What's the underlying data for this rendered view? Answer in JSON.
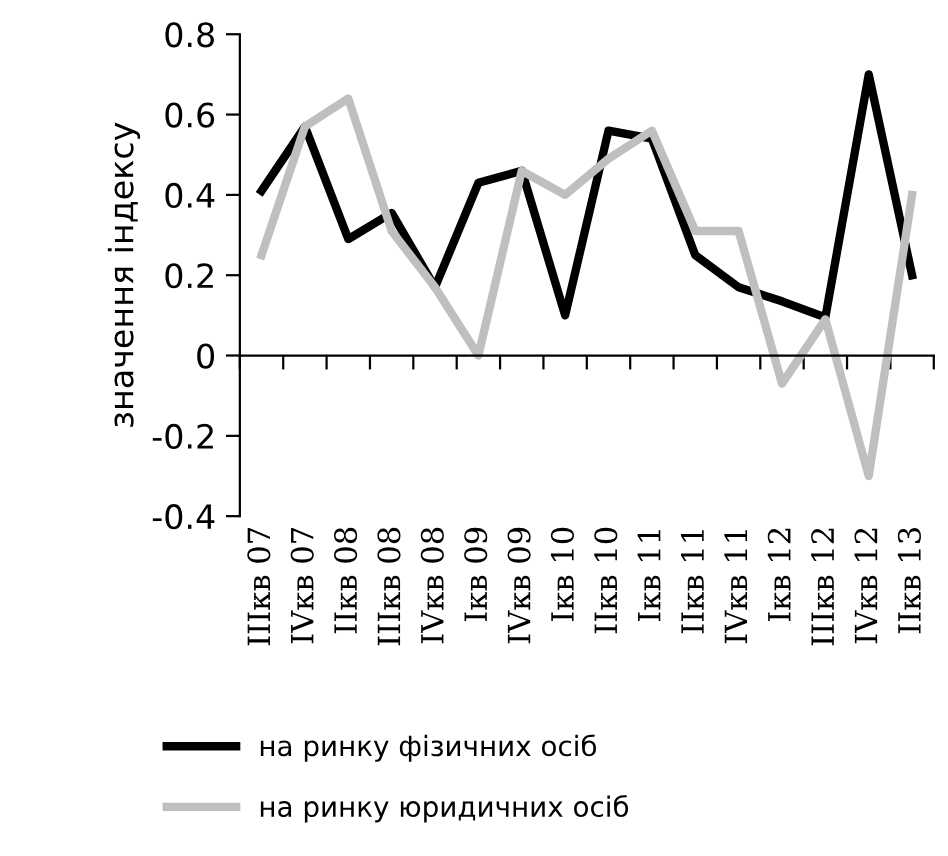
{
  "chart_data": {
    "type": "line",
    "ylabel": "значення індексу",
    "categories": [
      "IIIкв 07",
      "IVкв 07",
      "IIкв 08",
      "IIIкв 08",
      "IVкв 08",
      "Iкв 09",
      "IVкв 09",
      "Iкв 10",
      "IIкв 10",
      "Iкв 11",
      "IIкв 11",
      "IVкв 11",
      "Iкв 12",
      "IIIкв 12",
      "IVкв 12",
      "IIкв 13"
    ],
    "series": [
      {
        "name": "на ринку фізичних осіб",
        "color": "#000000",
        "values": [
          0.41,
          0.57,
          0.29,
          0.355,
          0.17,
          0.43,
          0.46,
          0.1,
          0.56,
          0.54,
          0.25,
          0.17,
          0.135,
          0.095,
          0.7,
          0.2
        ]
      },
      {
        "name": "на ринку юридичних осіб",
        "color": "#bfbfbf",
        "values": [
          0.25,
          0.57,
          0.64,
          0.31,
          0.17,
          0.0,
          0.46,
          0.4,
          0.49,
          0.56,
          0.31,
          0.31,
          -0.07,
          0.09,
          -0.3,
          0.4
        ]
      }
    ],
    "ylim": [
      -0.4,
      0.8
    ],
    "yticks": [
      -0.4,
      -0.2,
      0,
      0.2,
      0.4,
      0.6,
      0.8
    ],
    "legend": "bottom",
    "marker": "none",
    "line_style": "solid"
  }
}
